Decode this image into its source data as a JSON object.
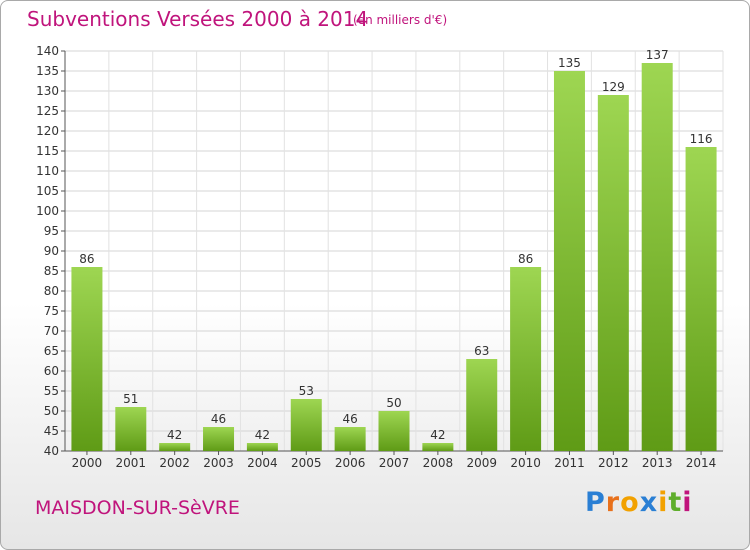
{
  "header": {
    "title": "Subventions Versées 2000 à 2014",
    "unit": "(en milliers d'€)"
  },
  "footer": {
    "commune": "MAISDON-SUR-SèVRE",
    "logo": "Proxiti"
  },
  "colors": {
    "bar_light": "#9ed652",
    "bar_dark": "#5f9b16",
    "text_accent": "#c0147c"
  },
  "chart_data": {
    "type": "bar",
    "title": "Subventions Versées 2000 à 2014",
    "subtitle": "(en milliers d'€)",
    "xlabel": "",
    "ylabel": "",
    "categories": [
      "2000",
      "2001",
      "2002",
      "2003",
      "2004",
      "2005",
      "2006",
      "2007",
      "2008",
      "2009",
      "2010",
      "2011",
      "2012",
      "2013",
      "2014"
    ],
    "values": [
      86,
      51,
      42,
      46,
      42,
      53,
      46,
      50,
      42,
      63,
      86,
      135,
      129,
      137,
      116
    ],
    "ylim": [
      40,
      140
    ],
    "yticks": [
      40,
      45,
      50,
      55,
      60,
      65,
      70,
      75,
      80,
      85,
      90,
      95,
      100,
      105,
      110,
      115,
      120,
      125,
      130,
      135,
      140
    ],
    "grid": true,
    "legend": "none"
  }
}
